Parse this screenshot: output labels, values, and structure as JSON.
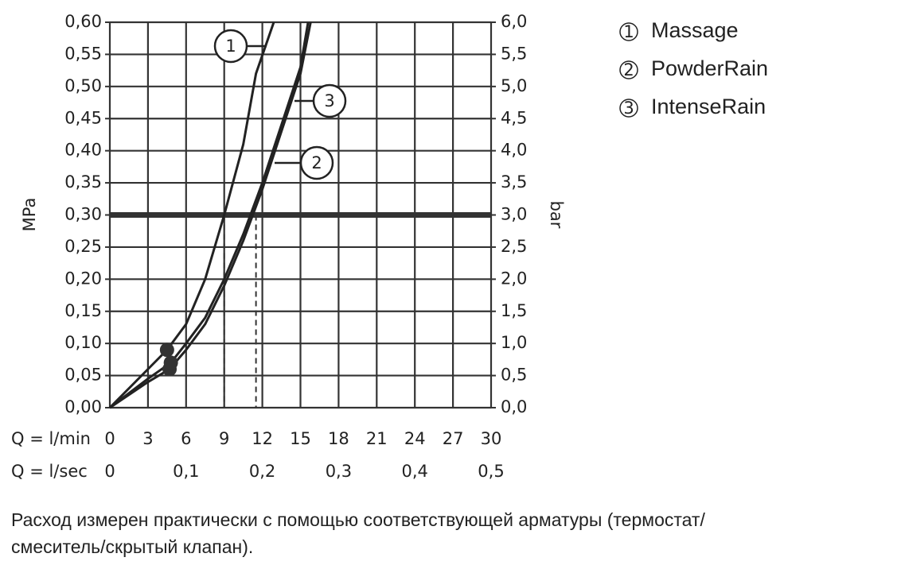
{
  "chart_data": {
    "type": "line",
    "y_axis_label": "MPa",
    "y2_axis_label": "bar",
    "x_axis_label": "Q = l/min",
    "x2_axis_label": "Q = l/sec",
    "xlim": [
      0,
      30
    ],
    "xticks": [
      0,
      3,
      6,
      9,
      12,
      15,
      18,
      21,
      24,
      27,
      30
    ],
    "x2lim": [
      0,
      0.5
    ],
    "x2ticks": [
      0,
      {
        "value": 0.1,
        "label": "0,1"
      },
      {
        "value": 0.2,
        "label": "0,2"
      },
      {
        "value": 0.3,
        "label": "0,3"
      },
      {
        "value": 0.4,
        "label": "0,4"
      },
      {
        "value": 0.5,
        "label": "0,5"
      }
    ],
    "ylim": [
      0,
      0.6
    ],
    "yticks": [
      {
        "value": 0,
        "label": "0,00"
      },
      {
        "value": 0.05,
        "label": "0,05"
      },
      {
        "value": 0.1,
        "label": "0,10"
      },
      {
        "value": 0.15,
        "label": "0,15"
      },
      {
        "value": 0.2,
        "label": "0,20"
      },
      {
        "value": 0.25,
        "label": "0,25"
      },
      {
        "value": 0.3,
        "label": "0,30"
      },
      {
        "value": 0.35,
        "label": "0,35"
      },
      {
        "value": 0.4,
        "label": "0,40"
      },
      {
        "value": 0.45,
        "label": "0,45"
      },
      {
        "value": 0.5,
        "label": "0,50"
      },
      {
        "value": 0.55,
        "label": "0,55"
      },
      {
        "value": 0.6,
        "label": "0,60"
      }
    ],
    "y2lim": [
      0,
      6
    ],
    "y2ticks": [
      {
        "value": 0,
        "label": "0,0"
      },
      {
        "value": 0.5,
        "label": "0,5"
      },
      {
        "value": 1,
        "label": "1,0"
      },
      {
        "value": 1.5,
        "label": "1,5"
      },
      {
        "value": 2,
        "label": "2,0"
      },
      {
        "value": 2.5,
        "label": "2,5"
      },
      {
        "value": 3,
        "label": "3,0"
      },
      {
        "value": 3.5,
        "label": "3,5"
      },
      {
        "value": 4,
        "label": "4,0"
      },
      {
        "value": 4.5,
        "label": "4,5"
      },
      {
        "value": 5,
        "label": "5,0"
      },
      {
        "value": 5.5,
        "label": "5,5"
      },
      {
        "value": 6,
        "label": "6,0"
      }
    ],
    "grid": true,
    "reference_line": 0.3,
    "drop_lines": [
      9,
      11.5
    ],
    "series": [
      {
        "name": "Massage",
        "label": "1",
        "color": "#222222",
        "x": [
          0,
          3,
          4.5,
          6,
          7.5,
          9,
          10.5,
          11.5,
          12.9
        ],
        "values": [
          0,
          0.06,
          0.09,
          0.13,
          0.2,
          0.3,
          0.41,
          0.52,
          0.6
        ]
      },
      {
        "name": "PowderRain",
        "label": "2",
        "color": "#222222",
        "x": [
          0,
          3,
          4.7,
          6,
          7.5,
          9,
          10.5,
          12,
          13.5,
          15,
          15.8
        ],
        "values": [
          0,
          0.04,
          0.06,
          0.09,
          0.13,
          0.19,
          0.26,
          0.34,
          0.43,
          0.52,
          0.6
        ]
      },
      {
        "name": "IntenseRain",
        "label": "3",
        "color": "#222222",
        "x": [
          0,
          3,
          4.8,
          6,
          7.5,
          9,
          10.5,
          12,
          13.5,
          15,
          15.6
        ],
        "values": [
          0,
          0.045,
          0.07,
          0.1,
          0.14,
          0.2,
          0.27,
          0.35,
          0.44,
          0.53,
          0.6
        ]
      }
    ],
    "markers": {
      "x": [
        4.5,
        4.7,
        4.8
      ],
      "values": [
        0.09,
        0.06,
        0.07
      ]
    },
    "caption": [
      "Расход измерен практически с помощью соответствующей арматуры (термостат/",
      "смеситель/скрытый клапан)."
    ]
  }
}
